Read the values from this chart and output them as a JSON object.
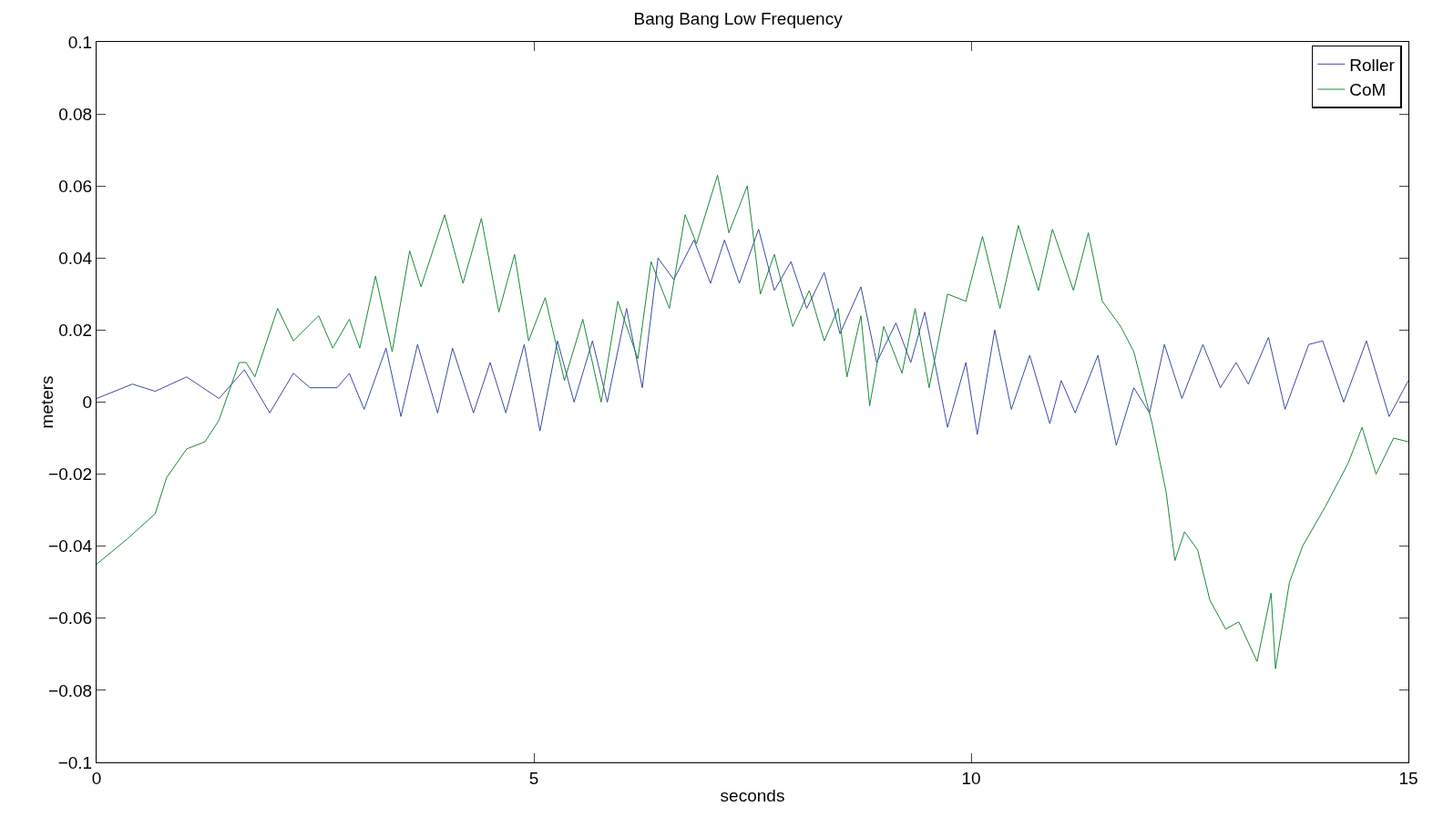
{
  "chart_data": {
    "type": "line",
    "title": "Bang Bang Low Frequency",
    "xlabel": "seconds",
    "ylabel": "meters",
    "xlim": [
      0,
      15
    ],
    "xticks": [
      0,
      5,
      10,
      15
    ],
    "ylim": [
      -0.1,
      0.1
    ],
    "yticks": [
      {
        "value": -0.1,
        "label": "−0.1"
      },
      {
        "value": -0.08,
        "label": "−0.08"
      },
      {
        "value": -0.06,
        "label": "−0.06"
      },
      {
        "value": -0.04,
        "label": "−0.04"
      },
      {
        "value": -0.02,
        "label": "−0.02"
      },
      0,
      0.02,
      0.04,
      0.06,
      0.08,
      0.1
    ],
    "grid": false,
    "legend": "top right",
    "line_style": "solid",
    "marker": "none",
    "series": [
      {
        "name": "Roller",
        "color": "#3a4ba8",
        "x": [
          0,
          0.41,
          0.67,
          1.03,
          1.4,
          1.69,
          1.98,
          2.25,
          2.44,
          2.75,
          2.89,
          3.06,
          3.31,
          3.48,
          3.67,
          3.9,
          4.07,
          4.31,
          4.5,
          4.68,
          4.89,
          5.07,
          5.27,
          5.46,
          5.67,
          5.84,
          6.06,
          6.24,
          6.42,
          6.6,
          6.83,
          7.02,
          7.18,
          7.35,
          7.57,
          7.75,
          7.94,
          8.12,
          8.32,
          8.5,
          8.74,
          8.92,
          9.14,
          9.31,
          9.47,
          9.73,
          9.94,
          10.07,
          10.27,
          10.46,
          10.67,
          10.9,
          11.03,
          11.19,
          11.45,
          11.66,
          11.86,
          12.04,
          12.21,
          12.41,
          12.65,
          12.85,
          13.03,
          13.17,
          13.4,
          13.59,
          13.86,
          14.02,
          14.26,
          14.52,
          14.78,
          15
        ],
        "values": [
          0.001,
          0.005,
          0.003,
          0.007,
          0.001,
          0.009,
          -0.003,
          0.008,
          0.004,
          0.004,
          0.008,
          -0.002,
          0.015,
          -0.004,
          0.016,
          -0.003,
          0.015,
          -0.003,
          0.011,
          -0.003,
          0.016,
          -0.008,
          0.017,
          0,
          0.017,
          0,
          0.026,
          0.004,
          0.04,
          0.034,
          0.045,
          0.033,
          0.045,
          0.033,
          0.048,
          0.031,
          0.039,
          0.026,
          0.036,
          0.019,
          0.032,
          0.011,
          0.022,
          0.011,
          0.025,
          -0.007,
          0.011,
          -0.009,
          0.02,
          -0.002,
          0.013,
          -0.006,
          0.006,
          -0.003,
          0.013,
          -0.012,
          0.004,
          -0.003,
          0.016,
          0.001,
          0.016,
          0.004,
          0.011,
          0.005,
          0.018,
          -0.002,
          0.016,
          0.017,
          0,
          0.017,
          -0.004,
          0.006
        ]
      },
      {
        "name": "CoM",
        "color": "#1a8a3a",
        "x": [
          0,
          0.35,
          0.67,
          0.8,
          1.03,
          1.24,
          1.4,
          1.63,
          1.71,
          1.81,
          2.07,
          2.25,
          2.54,
          2.7,
          2.89,
          3.01,
          3.19,
          3.38,
          3.58,
          3.71,
          3.98,
          4.19,
          4.4,
          4.6,
          4.78,
          4.94,
          5.13,
          5.35,
          5.56,
          5.77,
          5.96,
          6.19,
          6.34,
          6.55,
          6.73,
          6.86,
          7.1,
          7.23,
          7.44,
          7.59,
          7.75,
          7.96,
          8.15,
          8.32,
          8.48,
          8.58,
          8.74,
          8.84,
          9,
          9.21,
          9.36,
          9.52,
          9.73,
          9.94,
          10.13,
          10.33,
          10.54,
          10.77,
          10.93,
          11.17,
          11.34,
          11.5,
          11.71,
          11.86,
          12.07,
          12.23,
          12.33,
          12.44,
          12.59,
          12.73,
          12.91,
          13.06,
          13.27,
          13.43,
          13.48,
          13.64,
          13.79,
          14.05,
          14.31,
          14.47,
          14.63,
          14.83,
          15
        ],
        "values": [
          -0.045,
          -0.038,
          -0.031,
          -0.021,
          -0.013,
          -0.011,
          -0.005,
          0.011,
          0.011,
          0.007,
          0.026,
          0.017,
          0.024,
          0.015,
          0.023,
          0.015,
          0.035,
          0.014,
          0.042,
          0.032,
          0.052,
          0.033,
          0.051,
          0.025,
          0.041,
          0.017,
          0.029,
          0.006,
          0.023,
          0,
          0.028,
          0.012,
          0.039,
          0.026,
          0.052,
          0.044,
          0.063,
          0.047,
          0.06,
          0.03,
          0.041,
          0.021,
          0.031,
          0.017,
          0.026,
          0.007,
          0.024,
          -0.001,
          0.021,
          0.008,
          0.026,
          0.004,
          0.03,
          0.028,
          0.046,
          0.026,
          0.049,
          0.031,
          0.048,
          0.031,
          0.047,
          0.028,
          0.021,
          0.014,
          -0.006,
          -0.025,
          -0.044,
          -0.036,
          -0.041,
          -0.055,
          -0.063,
          -0.061,
          -0.072,
          -0.053,
          -0.074,
          -0.05,
          -0.04,
          -0.029,
          -0.017,
          -0.007,
          -0.02,
          -0.01,
          -0.011
        ]
      }
    ]
  }
}
